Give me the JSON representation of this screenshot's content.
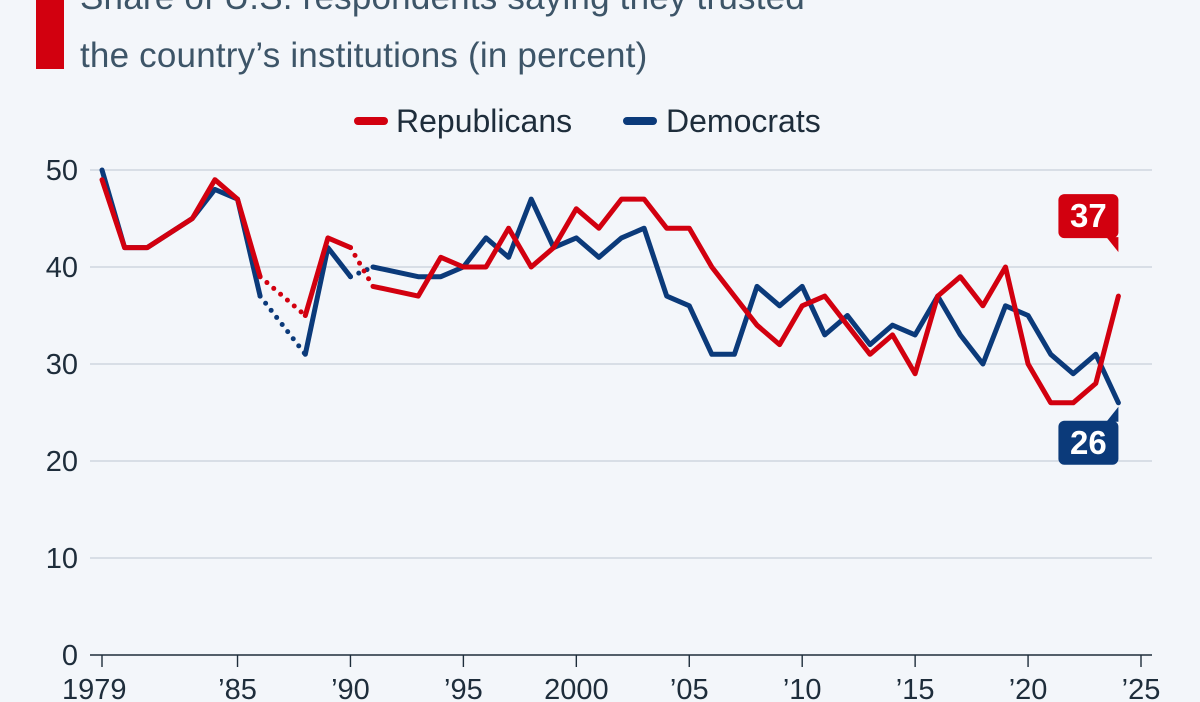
{
  "subtitle": [
    "Share of U.S. respondents saying they trusted",
    "the country’s institutions (in percent)"
  ],
  "colors": {
    "republicans": "#d2000f",
    "democrats": "#0b3a7a",
    "accent": "#d2000f",
    "grid": "#c8d0d9"
  },
  "chart_data": {
    "type": "line",
    "title": "",
    "xlabel": "",
    "ylabel": "",
    "xlim": [
      1979,
      2025
    ],
    "ylim": [
      0,
      50
    ],
    "yticks": [
      0,
      10,
      20,
      30,
      40,
      50
    ],
    "ytick_labels": [
      "0",
      "10",
      "20",
      "30",
      "40",
      "50"
    ],
    "xticks": [
      1979,
      1985,
      1990,
      1995,
      2000,
      2005,
      2010,
      2015,
      2020,
      2025
    ],
    "xtick_labels": [
      "1979",
      "’85",
      "’90",
      "’95",
      "2000",
      "’05",
      "’10",
      "’15",
      "’20",
      "’25"
    ],
    "grid": true,
    "legend_position": "top-center",
    "series": [
      {
        "name": "Republicans",
        "color": "#d2000f",
        "segments": [
          {
            "style": "solid",
            "points": [
              [
                1979,
                49
              ],
              [
                1980,
                42
              ],
              [
                1981,
                42
              ],
              [
                1983,
                45
              ],
              [
                1984,
                49
              ],
              [
                1985,
                47
              ],
              [
                1986,
                39
              ]
            ]
          },
          {
            "style": "dotted",
            "points": [
              [
                1986,
                39
              ],
              [
                1988,
                35
              ]
            ]
          },
          {
            "style": "solid",
            "points": [
              [
                1988,
                35
              ],
              [
                1989,
                43
              ],
              [
                1990,
                42
              ]
            ]
          },
          {
            "style": "dotted",
            "points": [
              [
                1990,
                42
              ],
              [
                1991,
                38
              ]
            ]
          },
          {
            "style": "solid",
            "points": [
              [
                1991,
                38
              ],
              [
                1993,
                37
              ],
              [
                1994,
                41
              ],
              [
                1995,
                40
              ],
              [
                1996,
                40
              ],
              [
                1997,
                44
              ],
              [
                1998,
                40
              ],
              [
                1999,
                42
              ],
              [
                2000,
                46
              ],
              [
                2001,
                44
              ],
              [
                2002,
                47
              ],
              [
                2003,
                47
              ],
              [
                2004,
                44
              ],
              [
                2005,
                44
              ],
              [
                2006,
                40
              ],
              [
                2007,
                37
              ],
              [
                2008,
                34
              ],
              [
                2009,
                32
              ],
              [
                2010,
                36
              ],
              [
                2011,
                37
              ],
              [
                2012,
                34
              ],
              [
                2013,
                31
              ],
              [
                2014,
                33
              ],
              [
                2015,
                29
              ],
              [
                2016,
                37
              ],
              [
                2017,
                39
              ],
              [
                2018,
                36
              ],
              [
                2019,
                40
              ],
              [
                2020,
                30
              ],
              [
                2021,
                26
              ],
              [
                2022,
                26
              ],
              [
                2023,
                28
              ],
              [
                2024,
                37
              ]
            ]
          }
        ]
      },
      {
        "name": "Democrats",
        "color": "#0b3a7a",
        "segments": [
          {
            "style": "solid",
            "points": [
              [
                1979,
                50
              ],
              [
                1980,
                42
              ],
              [
                1981,
                42
              ],
              [
                1983,
                45
              ],
              [
                1984,
                48
              ],
              [
                1985,
                47
              ],
              [
                1986,
                37
              ]
            ]
          },
          {
            "style": "dotted",
            "points": [
              [
                1986,
                37
              ],
              [
                1988,
                31
              ]
            ]
          },
          {
            "style": "solid",
            "points": [
              [
                1988,
                31
              ],
              [
                1989,
                42
              ],
              [
                1990,
                39
              ]
            ]
          },
          {
            "style": "dotted",
            "points": [
              [
                1990,
                39
              ],
              [
                1991,
                40
              ]
            ]
          },
          {
            "style": "solid",
            "points": [
              [
                1991,
                40
              ],
              [
                1993,
                39
              ],
              [
                1994,
                39
              ],
              [
                1995,
                40
              ],
              [
                1996,
                43
              ],
              [
                1997,
                41
              ],
              [
                1998,
                47
              ],
              [
                1999,
                42
              ],
              [
                2000,
                43
              ],
              [
                2001,
                41
              ],
              [
                2002,
                43
              ],
              [
                2003,
                44
              ],
              [
                2004,
                37
              ],
              [
                2005,
                36
              ],
              [
                2006,
                31
              ],
              [
                2007,
                31
              ],
              [
                2008,
                38
              ],
              [
                2009,
                36
              ],
              [
                2010,
                38
              ],
              [
                2011,
                33
              ],
              [
                2012,
                35
              ],
              [
                2013,
                32
              ],
              [
                2014,
                34
              ],
              [
                2015,
                33
              ],
              [
                2016,
                37
              ],
              [
                2017,
                33
              ],
              [
                2018,
                30
              ],
              [
                2019,
                36
              ],
              [
                2020,
                35
              ],
              [
                2021,
                31
              ],
              [
                2022,
                29
              ],
              [
                2023,
                31
              ],
              [
                2024,
                26
              ]
            ]
          }
        ]
      }
    ],
    "callouts": [
      {
        "series": "Republicans",
        "label": "37",
        "value": 37,
        "position": "above"
      },
      {
        "series": "Democrats",
        "label": "26",
        "value": 26,
        "position": "below"
      }
    ]
  }
}
